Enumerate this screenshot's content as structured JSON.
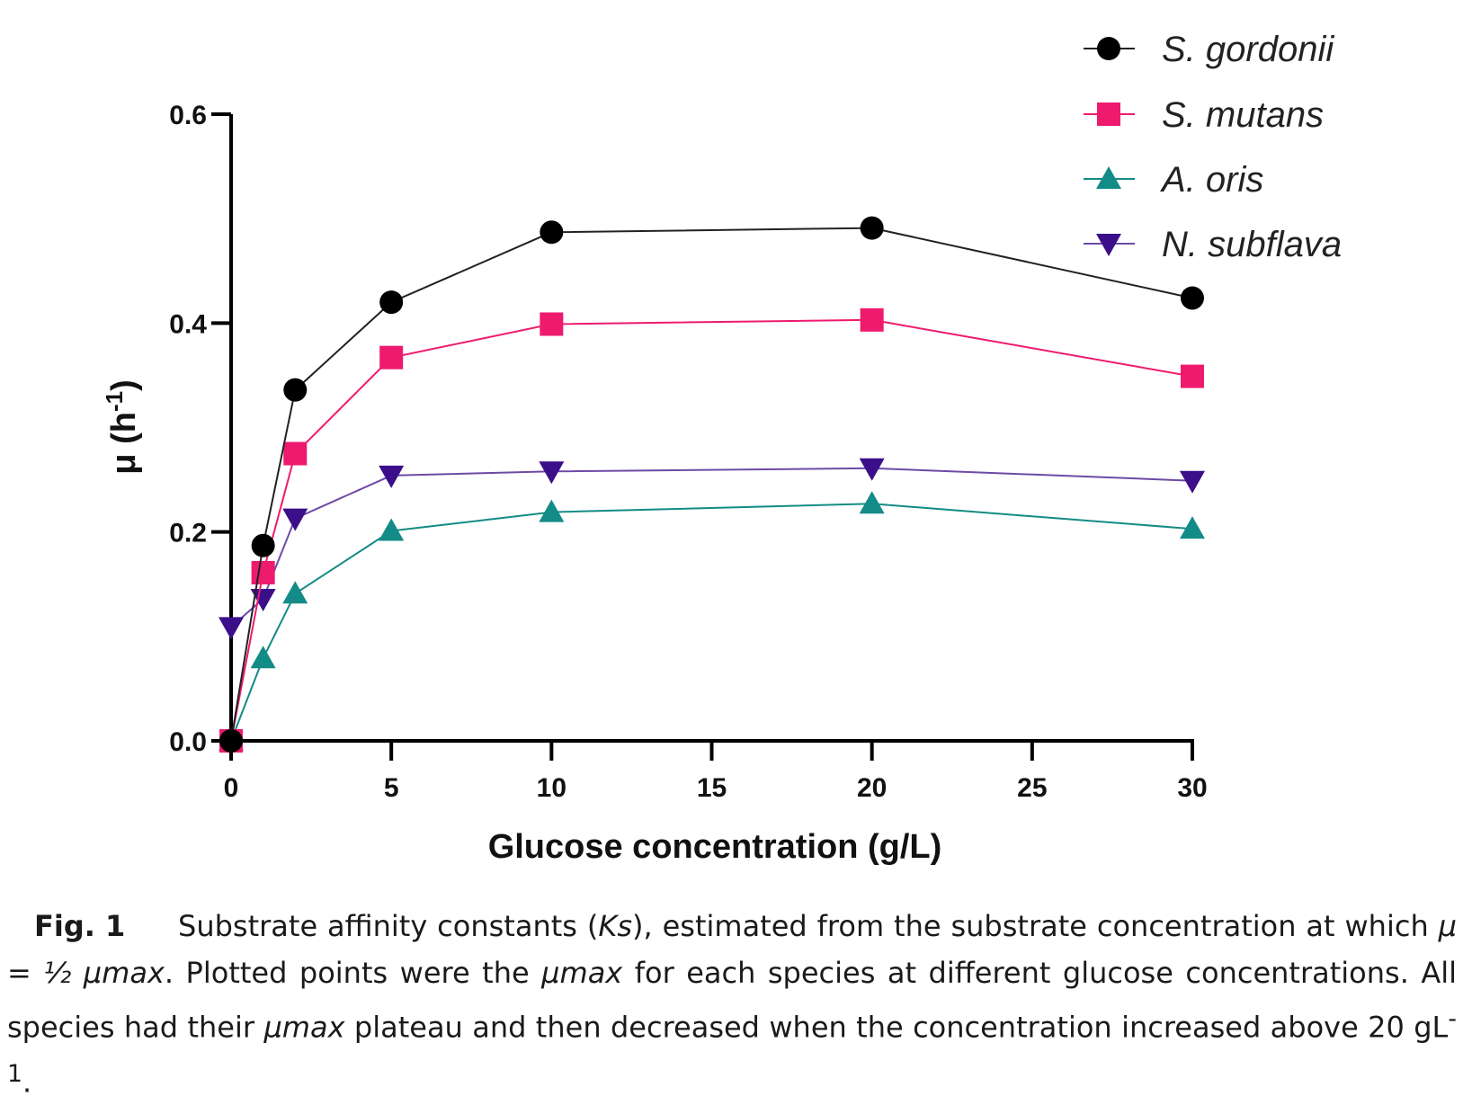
{
  "chart_data": {
    "type": "line",
    "xlabel": "Glucose concentration (g/L)",
    "ylabel_main": "μ (h",
    "ylabel_sup": "-1",
    "ylabel_close": ")",
    "xlim": [
      0,
      30
    ],
    "ylim": [
      0,
      0.6
    ],
    "x_ticks": [
      0,
      5,
      10,
      15,
      20,
      25,
      30
    ],
    "x_tick_labels": [
      "0",
      "5",
      "10",
      "15",
      "20",
      "25",
      "30"
    ],
    "y_ticks": [
      0.0,
      0.2,
      0.4,
      0.6
    ],
    "y_tick_labels": [
      "0.0",
      "0.2",
      "0.4",
      "0.6"
    ],
    "legend_position": "top-right",
    "grid": false,
    "series": [
      {
        "name": "S. gordonii",
        "marker": "circle",
        "color": "#000000",
        "line_color": "#222222",
        "x": [
          0,
          1,
          2,
          5,
          10,
          20,
          30
        ],
        "y": [
          0.0,
          0.187,
          0.336,
          0.42,
          0.487,
          0.491,
          0.424
        ]
      },
      {
        "name": "S. mutans",
        "marker": "square",
        "color": "#ee1a6e",
        "line_color": "#ee1a6e",
        "x": [
          0,
          1,
          2,
          5,
          10,
          20,
          30
        ],
        "y": [
          0.0,
          0.161,
          0.275,
          0.367,
          0.399,
          0.403,
          0.349
        ]
      },
      {
        "name": "A. oris",
        "marker": "triangle-up",
        "color": "#138b86",
        "line_color": "#138b86",
        "x": [
          0,
          1,
          2,
          5,
          10,
          20,
          30
        ],
        "y": [
          0.0,
          0.079,
          0.141,
          0.201,
          0.219,
          0.227,
          0.203
        ]
      },
      {
        "name": "N. subflava",
        "marker": "triangle-down",
        "color": "#3c0f8a",
        "line_color": "#6d4aa6",
        "x": [
          0,
          1,
          2,
          5,
          10,
          20,
          30
        ],
        "y": [
          0.109,
          0.136,
          0.213,
          0.254,
          0.258,
          0.261,
          0.249
        ]
      }
    ]
  },
  "caption": {
    "label": "Fig. 1",
    "p1": "Substrate affinity constants (",
    "ks": "Ks",
    "p2": "), estimated from the substrate concentration at which ",
    "mu_eq": "μ = ½ μmax",
    "p3": ". Plotted points were the ",
    "mumax1": "μmax",
    "p4": " for each species at different glucose concentrations. All species had their ",
    "mumax2": "μmax",
    "p5": " plateau and then decreased when the concentration increased above 20 gL",
    "sup": "-1",
    "p6": "."
  }
}
